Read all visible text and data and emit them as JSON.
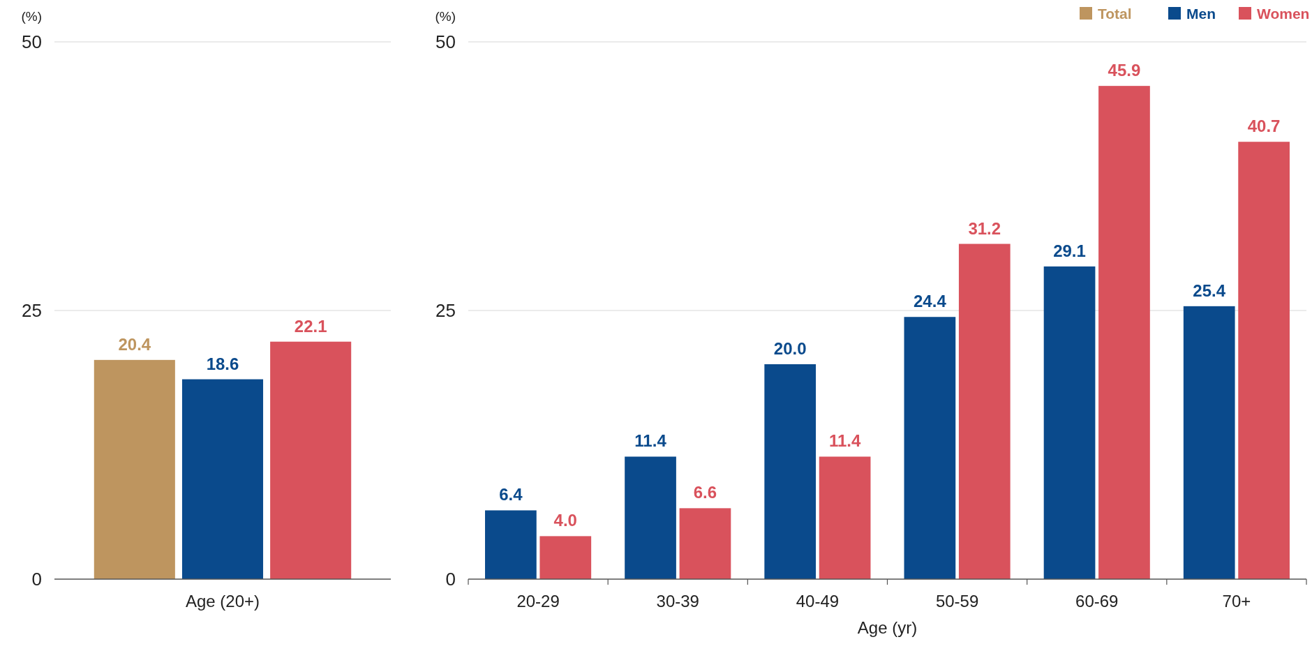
{
  "chart_data": [
    {
      "type": "bar",
      "ylabel": "(%)",
      "categories": [
        null,
        "Age (20+)",
        null
      ],
      "series": [
        {
          "colors": [
            "#be955f",
            "#0a4a8c",
            "#d9525c"
          ],
          "values": [
            20.4,
            18.6,
            22.1
          ],
          "value_labels": [
            "20.4",
            "18.6",
            "22.1"
          ]
        }
      ],
      "ylim": [
        0,
        50
      ],
      "yticks": [
        0,
        25,
        50
      ],
      "grid": "y",
      "legend": false
    },
    {
      "type": "bar",
      "ylabel": "(%)",
      "xlabel": "Age (yr)",
      "categories": [
        "20-29",
        "30-39",
        "40-49",
        "50-59",
        "60-69",
        "70+"
      ],
      "series": [
        {
          "name": "Total",
          "color": "#be955f",
          "values": [
            null,
            null,
            null,
            null,
            null,
            null
          ]
        },
        {
          "name": "Men",
          "color": "#0a4a8c",
          "values": [
            6.4,
            11.4,
            20.0,
            24.4,
            29.1,
            25.4
          ],
          "value_labels": [
            "6.4",
            "11.4",
            "20.0",
            "24.4",
            "29.1",
            "25.4"
          ]
        },
        {
          "name": "Women",
          "color": "#d9525c",
          "values": [
            4.0,
            6.6,
            11.4,
            31.2,
            45.9,
            40.7
          ],
          "value_labels": [
            "4.0",
            "6.6",
            "11.4",
            "31.2",
            "45.9",
            "40.7"
          ]
        }
      ],
      "ylim": [
        0,
        50
      ],
      "yticks": [
        0,
        25,
        50
      ],
      "grid": "y",
      "legend": "top right"
    }
  ]
}
